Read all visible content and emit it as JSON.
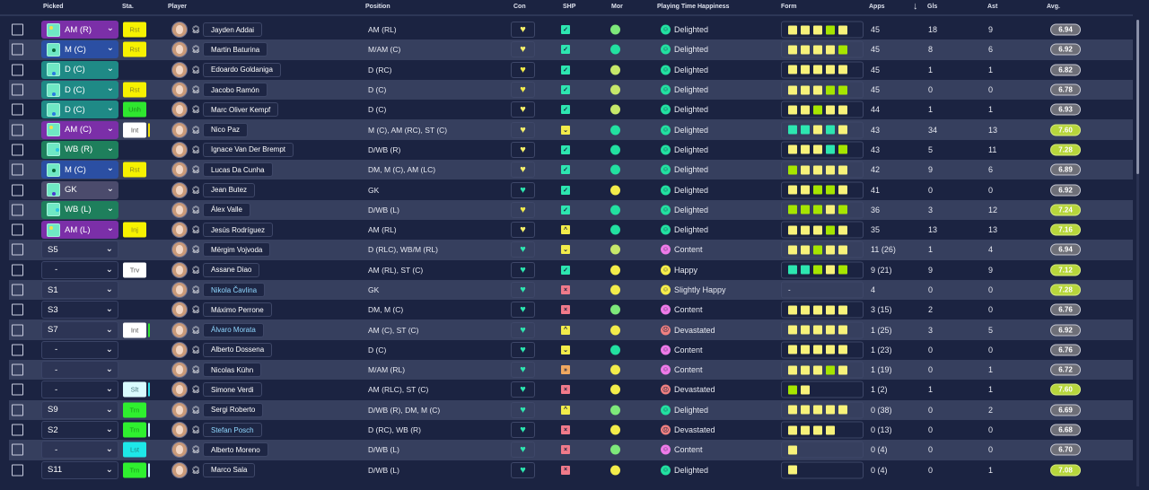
{
  "headers": {
    "picked": "Picked",
    "sta": "Sta.",
    "player": "Player",
    "position": "Position",
    "con": "Con",
    "shp": "SHP",
    "mor": "Mor",
    "pth": "Playing Time Happiness",
    "form": "Form",
    "apps": "Apps",
    "gls": "Gls",
    "ast": "Ast",
    "avg": "Avg."
  },
  "sort": {
    "column": "Gls",
    "direction": "descending",
    "icon": "arrow-down-icon"
  },
  "colors": {
    "background": "#1b2341",
    "row_alt": "#363f5e",
    "form_yellow": "#f7f27a",
    "form_lime": "#a6e500",
    "form_teal": "#2de6b0",
    "avg_good": "#b7d63c",
    "avg_normal": "#6e6f78"
  },
  "players": [
    {
      "picked": "AM (R)",
      "pk": "am",
      "sta": "Rst",
      "st": "rst",
      "name": "Jayden Addai",
      "pos": "AM (RL)",
      "con": "wy",
      "shp": "check",
      "mor": "g",
      "pth": "Delighted",
      "mood": "d",
      "form": "YYYLY",
      "apps": "45",
      "gls": "18",
      "ast": "9",
      "avg": "6.94",
      "good": false
    },
    {
      "picked": "M (C)",
      "pk": "m",
      "sta": "Rst",
      "st": "rst",
      "name": "Martin Baturina",
      "pos": "M/AM (C)",
      "con": "wy",
      "shp": "check",
      "mor": "t",
      "pth": "Delighted",
      "mood": "d",
      "form": "YYYYL",
      "apps": "45",
      "gls": "8",
      "ast": "6",
      "avg": "6.92",
      "good": false
    },
    {
      "picked": "D (C)",
      "pk": "d",
      "sta": "",
      "st": "",
      "name": "Edoardo Goldaniga",
      "pos": "D (RC)",
      "con": "y",
      "shp": "check",
      "mor": "l",
      "pth": "Delighted",
      "mood": "d",
      "form": "YYYYY",
      "apps": "45",
      "gls": "1",
      "ast": "1",
      "avg": "6.82",
      "good": false
    },
    {
      "picked": "D (C)",
      "pk": "d",
      "sta": "Rst",
      "st": "rst",
      "name": "Jacobo Ramón",
      "pos": "D (C)",
      "con": "y",
      "shp": "check",
      "mor": "l",
      "pth": "Delighted",
      "mood": "d",
      "form": "YYYLL",
      "apps": "45",
      "gls": "0",
      "ast": "0",
      "avg": "6.78",
      "good": false
    },
    {
      "picked": "D (C)",
      "pk": "d",
      "sta": "Unh",
      "st": "unh",
      "name": "Marc Oliver Kempf",
      "pos": "D (C)",
      "con": "wy",
      "shp": "check",
      "mor": "l",
      "pth": "Delighted",
      "mood": "d",
      "form": "YYLYY",
      "apps": "44",
      "gls": "1",
      "ast": "1",
      "avg": "6.93",
      "good": false
    },
    {
      "picked": "AM (C)",
      "pk": "am",
      "sta": "Int",
      "st": "int-y",
      "name": "Nico Paz",
      "pos": "M (C), AM (RC), ST (C)",
      "con": "wy",
      "shp": "down",
      "mor": "t",
      "pth": "Delighted",
      "mood": "d",
      "form": "TTYTY",
      "apps": "43",
      "gls": "34",
      "ast": "13",
      "avg": "7.60",
      "good": true
    },
    {
      "picked": "WB (R)",
      "pk": "wb",
      "sta": "",
      "st": "",
      "name": "Ignace Van Der Brempt",
      "pos": "D/WB (R)",
      "con": "wy",
      "shp": "check",
      "mor": "t",
      "pth": "Delighted",
      "mood": "d",
      "form": "YYYTL",
      "apps": "43",
      "gls": "5",
      "ast": "11",
      "avg": "7.28",
      "good": true
    },
    {
      "picked": "M (C)",
      "pk": "m",
      "sta": "Rst",
      "st": "rst",
      "name": "Lucas Da Cunha",
      "pos": "DM, M (C), AM (LC)",
      "con": "wy",
      "shp": "check",
      "mor": "t",
      "pth": "Delighted",
      "mood": "d",
      "form": "LYYYY",
      "apps": "42",
      "gls": "9",
      "ast": "6",
      "avg": "6.89",
      "good": false
    },
    {
      "picked": "GK",
      "pk": "gk",
      "sta": "",
      "st": "",
      "name": "Jean Butez",
      "pos": "GK",
      "con": "t",
      "shp": "check",
      "mor": "y",
      "pth": "Delighted",
      "mood": "d",
      "form": "YYLLY",
      "apps": "41",
      "gls": "0",
      "ast": "0",
      "avg": "6.92",
      "good": false
    },
    {
      "picked": "WB (L)",
      "pk": "wb",
      "sta": "",
      "st": "",
      "name": "Álex Valle",
      "pos": "D/WB (L)",
      "con": "y",
      "shp": "check",
      "mor": "t",
      "pth": "Delighted",
      "mood": "d",
      "form": "LLLYL",
      "apps": "36",
      "gls": "3",
      "ast": "12",
      "avg": "7.24",
      "good": true
    },
    {
      "picked": "AM (L)",
      "pk": "am",
      "sta": "Inj",
      "st": "rst",
      "name": "Jesús Rodríguez",
      "pos": "AM (RL)",
      "con": "wy",
      "shp": "up",
      "mor": "t",
      "pth": "Delighted",
      "mood": "d",
      "form": "YYYLY",
      "apps": "35",
      "gls": "13",
      "ast": "13",
      "avg": "7.16",
      "good": true
    },
    {
      "picked": "S5",
      "pk": "sub",
      "sta": "",
      "st": "",
      "name": "Mërgim Vojvoda",
      "pos": "D (RLC), WB/M (RL)",
      "con": "t",
      "shp": "down",
      "mor": "l",
      "pth": "Content",
      "mood": "c",
      "form": "YYLYY",
      "apps": "11 (26)",
      "gls": "1",
      "ast": "4",
      "avg": "6.94",
      "good": false
    },
    {
      "picked": "-",
      "pk": "sub",
      "sta": "Trv",
      "st": "trv",
      "name": "Assane Diao",
      "pos": "AM (RL), ST (C)",
      "con": "t",
      "shp": "check",
      "mor": "y",
      "pth": "Happy",
      "mood": "h",
      "form": "TTLYL",
      "apps": "9 (21)",
      "gls": "9",
      "ast": "9",
      "avg": "7.12",
      "good": true
    },
    {
      "picked": "S1",
      "pk": "sub",
      "sta": "",
      "st": "",
      "name": "Nikola Čavlina",
      "hl": true,
      "pos": "GK",
      "con": "t",
      "shp": "x",
      "mor": "y",
      "pth": "Slightly Happy",
      "mood": "h",
      "form": "-",
      "apps": "4",
      "gls": "0",
      "ast": "0",
      "avg": "7.28",
      "good": true
    },
    {
      "picked": "S3",
      "pk": "sub",
      "sta": "",
      "st": "",
      "name": "Máximo Perrone",
      "pos": "DM, M (C)",
      "con": "t",
      "shp": "x",
      "mor": "g",
      "pth": "Content",
      "mood": "c",
      "form": "YYYYY",
      "apps": "3 (15)",
      "gls": "2",
      "ast": "0",
      "avg": "6.76",
      "good": false
    },
    {
      "picked": "S7",
      "pk": "sub",
      "sta": "Int",
      "st": "int-g",
      "name": "Álvaro Morata",
      "hl": true,
      "pos": "AM (C), ST (C)",
      "con": "t",
      "shp": "up",
      "mor": "y",
      "pth": "Devastated",
      "mood": "v",
      "form": "YYYYY",
      "apps": "1 (25)",
      "gls": "3",
      "ast": "5",
      "avg": "6.92",
      "good": false
    },
    {
      "picked": "-",
      "pk": "sub",
      "sta": "",
      "st": "",
      "name": "Alberto Dossena",
      "pos": "D (C)",
      "con": "t",
      "shp": "down",
      "mor": "t",
      "pth": "Content",
      "mood": "c",
      "form": "YYYYY",
      "apps": "1 (23)",
      "gls": "0",
      "ast": "0",
      "avg": "6.76",
      "good": false
    },
    {
      "picked": "-",
      "pk": "sub",
      "sta": "",
      "st": "",
      "name": "Nicolas Kühn",
      "pos": "M/AM (RL)",
      "con": "t",
      "shp": "ddown",
      "mor": "y",
      "pth": "Content",
      "mood": "c",
      "form": "YYYLY",
      "apps": "1 (19)",
      "gls": "0",
      "ast": "1",
      "avg": "6.72",
      "good": false
    },
    {
      "picked": "-",
      "pk": "sub",
      "sta": "Slt",
      "st": "slt",
      "name": "Simone Verdi",
      "pos": "AM (RLC), ST (C)",
      "con": "t",
      "shp": "x",
      "mor": "y",
      "pth": "Devastated",
      "mood": "v",
      "form": "LY",
      "apps": "1 (2)",
      "gls": "1",
      "ast": "1",
      "avg": "7.60",
      "good": true
    },
    {
      "picked": "S9",
      "pk": "sub",
      "sta": "Trn",
      "st": "trn",
      "name": "Sergi Roberto",
      "pos": "D/WB (R), DM, M (C)",
      "con": "t",
      "shp": "up",
      "mor": "g",
      "pth": "Delighted",
      "mood": "d",
      "form": "YYYYY",
      "apps": "0 (38)",
      "gls": "0",
      "ast": "2",
      "avg": "6.69",
      "good": false
    },
    {
      "picked": "S2",
      "pk": "sub",
      "sta": "Trn",
      "st": "trn-b",
      "name": "Stefan Posch",
      "hl": true,
      "pos": "D (RC), WB (R)",
      "con": "t",
      "shp": "x",
      "mor": "y",
      "pth": "Devastated",
      "mood": "v",
      "form": "YYYY",
      "apps": "0 (13)",
      "gls": "0",
      "ast": "0",
      "avg": "6.68",
      "good": false
    },
    {
      "picked": "-",
      "pk": "sub",
      "sta": "Lst",
      "st": "lst",
      "name": "Alberto Moreno",
      "pos": "D/WB (L)",
      "con": "t",
      "shp": "x",
      "mor": "g",
      "pth": "Content",
      "mood": "c",
      "form": "Y",
      "apps": "0 (4)",
      "gls": "0",
      "ast": "0",
      "avg": "6.70",
      "good": false
    },
    {
      "picked": "S11",
      "pk": "sub",
      "sta": "Trn",
      "st": "trn-b",
      "name": "Marco Sala",
      "pos": "D/WB (L)",
      "con": "t",
      "shp": "x",
      "mor": "y",
      "pth": "Delighted",
      "mood": "d",
      "form": "Y",
      "apps": "0 (4)",
      "gls": "0",
      "ast": "1",
      "avg": "7.08",
      "good": true
    }
  ]
}
